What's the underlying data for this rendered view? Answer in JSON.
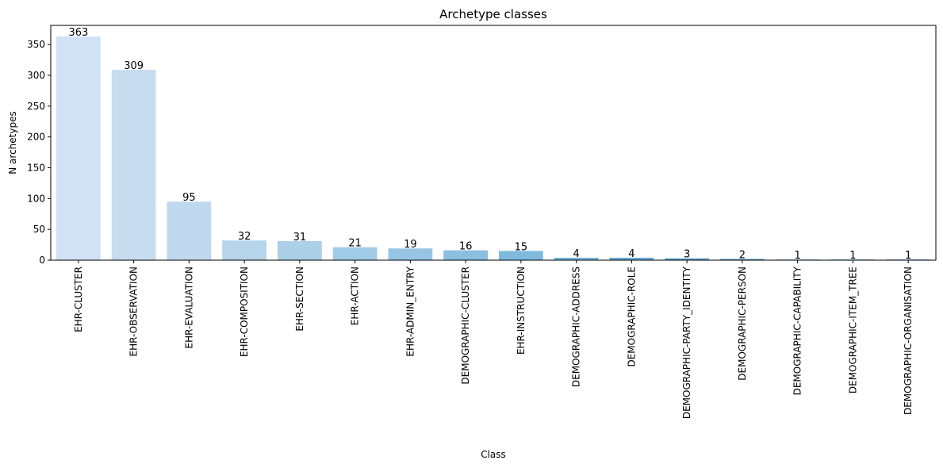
{
  "chart_data": {
    "type": "bar",
    "title": "Archetype classes",
    "xlabel": "Class",
    "ylabel": "N archetypes",
    "ylim": [
      0,
      381
    ],
    "yticks": [
      0,
      50,
      100,
      150,
      200,
      250,
      300,
      350
    ],
    "grid": false,
    "legend": false,
    "categories": [
      "EHR-CLUSTER",
      "EHR-OBSERVATION",
      "EHR-EVALUATION",
      "EHR-COMPOSITION",
      "EHR-SECTION",
      "EHR-ACTION",
      "EHR-ADMIN_ENTRY",
      "DEMOGRAPHIC-CLUSTER",
      "EHR-INSTRUCTION",
      "DEMOGRAPHIC-ADDRESS",
      "DEMOGRAPHIC-ROLE",
      "DEMOGRAPHIC-PARTY_IDENTITY",
      "DEMOGRAPHIC-PERSON",
      "DEMOGRAPHIC-CAPABILITY",
      "DEMOGRAPHIC-ITEM_TREE",
      "DEMOGRAPHIC-ORGANISATION"
    ],
    "values": [
      363,
      309,
      95,
      32,
      31,
      21,
      19,
      16,
      15,
      4,
      4,
      3,
      2,
      1,
      1,
      1
    ],
    "colors": [
      "#d0e2f3",
      "#c8dcf0",
      "#c0d8ed",
      "#b6d4ea",
      "#acd0e8",
      "#a1cbe6",
      "#96c5e4",
      "#8bbfe1",
      "#7fb9de",
      "#73b2db",
      "#67abd8",
      "#5ba3d4",
      "#4f9bd0",
      "#4392cb",
      "#3889c6",
      "#2f80c1"
    ]
  }
}
